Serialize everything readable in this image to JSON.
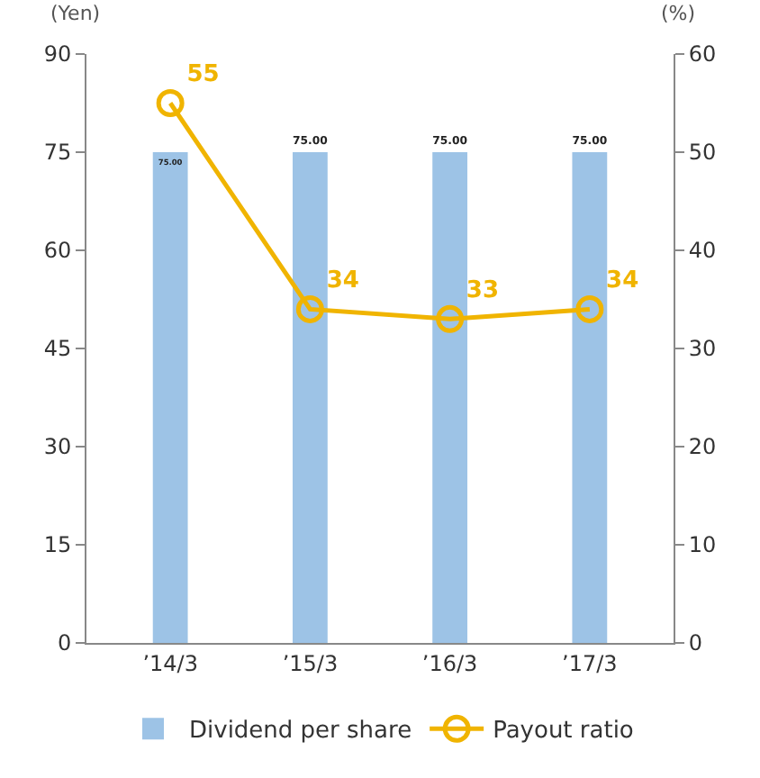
{
  "chart_data": {
    "type": "bar",
    "categories": [
      "’14/3",
      "’15/3",
      "’16/3",
      "’17/3"
    ],
    "ylabel": "(Yen)",
    "y2label": "(%)",
    "ylim": [
      0,
      90
    ],
    "yticks": [
      0,
      15,
      30,
      45,
      60,
      75,
      90
    ],
    "y2lim": [
      0,
      60
    ],
    "y2ticks": [
      0,
      10,
      20,
      30,
      40,
      50,
      60
    ],
    "series": [
      {
        "name": "Dividend per share",
        "color": "#9dc3e6",
        "values": [
          75,
          75,
          75,
          75
        ],
        "value_labels": [
          "75.00",
          "75.00",
          "75.00",
          "75.00"
        ]
      },
      {
        "name": "Payout ratio",
        "type": "line",
        "axis": "y2",
        "color": "#f0b400",
        "values": [
          55,
          34,
          33,
          34
        ],
        "value_labels": [
          "55",
          "34",
          "33",
          "34"
        ]
      }
    ],
    "marker": "circle",
    "grid": false,
    "legend": "bottom"
  }
}
